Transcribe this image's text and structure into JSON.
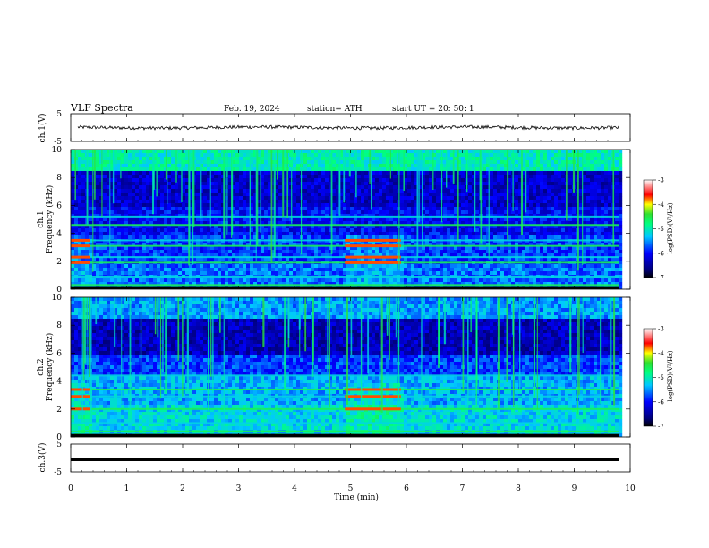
{
  "header": {
    "title": "VLF  Spectra",
    "date": "Feb. 19, 2024",
    "station": "station= ATH",
    "start_ut": "start  UT  =    20: 50: 1"
  },
  "chart_data": [
    {
      "type": "line",
      "panel": "ch1-waveform",
      "ylabel": "ch.1(V)",
      "ylim": [
        -5,
        5
      ],
      "yticks": [
        "5",
        "-5"
      ],
      "xlim": [
        0,
        10
      ],
      "series": [
        {
          "color": "#000000",
          "level": 0,
          "noise_amplitude": 0.6
        }
      ]
    },
    {
      "type": "heatmap",
      "panel": "ch1-spectrogram",
      "ylabel": "ch.1\nFrequency (kHz)",
      "ylabel_line1": "ch.1",
      "ylabel_line2": "Frequency (kHz)",
      "ylim": [
        0,
        10
      ],
      "yticks": [
        "10",
        "8",
        "6",
        "4",
        "2",
        "0"
      ],
      "xlim": [
        0,
        10
      ],
      "data_extent_min": 9.8,
      "colorbar": {
        "label": "log(PSD)(V²/Hz)",
        "ticks": [
          "-3",
          "-4",
          "-5",
          "-6",
          "-7"
        ],
        "range": [
          -7,
          -3
        ]
      },
      "bands_khz": [
        0.3,
        0.9,
        1.9,
        2.3,
        3.1,
        3.5,
        4.6,
        5.2
      ],
      "enhanced_segments_min": [
        [
          0,
          0.35
        ],
        [
          4.9,
          5.9
        ]
      ]
    },
    {
      "type": "heatmap",
      "panel": "ch2-spectrogram",
      "ylabel": "ch.2\nFrequency (kHz)",
      "ylabel_line1": "ch.2",
      "ylabel_line2": "Frequency (kHz)",
      "ylim": [
        0,
        10
      ],
      "yticks": [
        "10",
        "8",
        "6",
        "4",
        "2",
        "0"
      ],
      "xlim": [
        0,
        10
      ],
      "data_extent_min": 9.8,
      "colorbar": {
        "label": "log(PSD)(V²/Hz)",
        "ticks": [
          "-3",
          "-4",
          "-5",
          "-6",
          "-7"
        ],
        "range": [
          -7,
          -3
        ]
      },
      "bands_khz": [
        0.4,
        1.0,
        2.0,
        2.9,
        3.4,
        4.4
      ],
      "enhanced_segments_min": [
        [
          0,
          0.35
        ],
        [
          4.9,
          5.9
        ]
      ]
    },
    {
      "type": "line",
      "panel": "ch3-waveform",
      "ylabel": "ch.3(V)",
      "ylim": [
        -5,
        5
      ],
      "yticks": [
        "5",
        "-5"
      ],
      "xlim": [
        0,
        10
      ],
      "xlabel": "Time  (min)",
      "xticks": [
        "0",
        "1",
        "2",
        "3",
        "4",
        "5",
        "6",
        "7",
        "8",
        "9",
        "10"
      ],
      "series": [
        {
          "color": "#000000",
          "level": -0.5,
          "noise_amplitude": 0
        }
      ]
    }
  ]
}
